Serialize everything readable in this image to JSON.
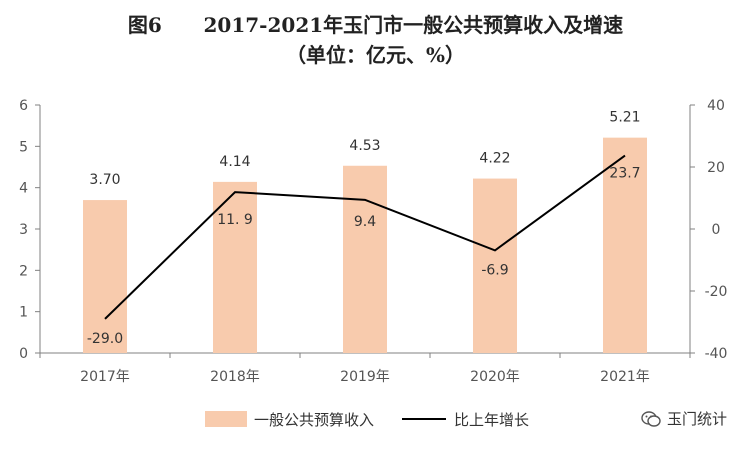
{
  "title": {
    "line1": "图6      2017-2021年玉门市一般公共预算收入及增速",
    "line2": "（单位：亿元、%）"
  },
  "watermark": "玉门统计",
  "chart_data": {
    "type": "bar",
    "categories": [
      "2017年",
      "2018年",
      "2019年",
      "2020年",
      "2021年"
    ],
    "series": [
      {
        "name": "一般公共预算收入",
        "type": "bar",
        "axis": "left",
        "values": [
          3.7,
          4.14,
          4.53,
          4.22,
          5.21
        ],
        "labels": [
          "3.70",
          "4.14",
          "4.53",
          "4.22",
          "5.21"
        ]
      },
      {
        "name": "比上年增长",
        "type": "line",
        "axis": "right",
        "values": [
          -29.0,
          11.9,
          9.4,
          -6.9,
          23.7
        ],
        "labels": [
          "-29.0",
          "11. 9",
          "9.4",
          "-6.9",
          "23.7"
        ]
      }
    ],
    "y_left": {
      "min": 0,
      "max": 6,
      "ticks": [
        "0",
        "1",
        "2",
        "3",
        "4",
        "5",
        "6"
      ]
    },
    "y_right": {
      "min": -40,
      "max": 40,
      "ticks": [
        "-40",
        "-20",
        "0",
        "20",
        "40"
      ]
    },
    "grid": false,
    "legend": "bottom",
    "colors": {
      "bar": "#f8cbad",
      "line": "#000000",
      "axis": "#808080"
    }
  }
}
